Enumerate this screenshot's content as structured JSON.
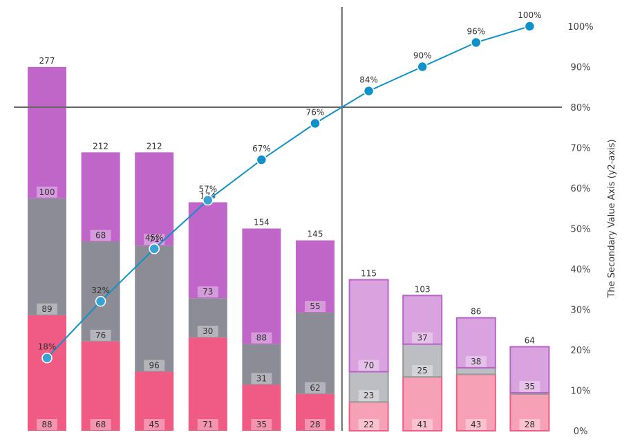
{
  "chart_data": {
    "type": "bar",
    "subtype": "stacked-bar-with-cumulative-line (pareto)",
    "categories": [
      "",
      "",
      "",
      "",
      "",
      "",
      "",
      "",
      "",
      ""
    ],
    "series": [
      {
        "values": [
          88,
          68,
          45,
          71,
          35,
          28,
          22,
          41,
          43,
          28
        ]
      },
      {
        "values": [
          89,
          76,
          96,
          30,
          31,
          62,
          23,
          25,
          5,
          1
        ]
      },
      {
        "values": [
          100,
          68,
          71,
          73,
          88,
          55,
          70,
          37,
          38,
          35
        ]
      }
    ],
    "segment_labels": [
      [
        "88",
        "68",
        "45",
        "71",
        "35",
        "28",
        "22",
        "41",
        "43",
        "28"
      ],
      [
        "89",
        "76",
        "96",
        "30",
        "31",
        "62",
        "23",
        "25",
        "",
        ""
      ],
      [
        "100",
        "68",
        "71",
        "73",
        "88",
        "55",
        "70",
        "37",
        "38",
        "35"
      ]
    ],
    "totals": [
      277,
      212,
      212,
      174,
      154,
      145,
      115,
      103,
      86,
      64
    ],
    "total_labels": [
      "277",
      "212",
      "212",
      "174",
      "154",
      "145",
      "115",
      "103",
      "86",
      "64"
    ],
    "cumulative_line": {
      "values": [
        18,
        32,
        45,
        57,
        67,
        76,
        84,
        90,
        96,
        100
      ],
      "labels": [
        "18%",
        "32%",
        "45%",
        "57%",
        "67%",
        "76%",
        "84%",
        "90%",
        "96%",
        "100%"
      ]
    },
    "y_axis": {
      "ylim": [
        0,
        308
      ]
    },
    "y2_axis": {
      "label": "The Secondary Value Axis (y2-axis)",
      "ylim": [
        0,
        100
      ],
      "ticks": [
        0,
        10,
        20,
        30,
        40,
        50,
        60,
        70,
        80,
        90,
        100
      ],
      "tick_labels": [
        "0%",
        "10%",
        "20%",
        "30%",
        "40%",
        "50%",
        "60%",
        "70%",
        "80%",
        "90%",
        "100%"
      ]
    },
    "threshold": {
      "y2_value": 80,
      "split_after_index": 5
    },
    "grid": false,
    "colors": {
      "series_primary": [
        "#f05b84",
        "#8c8c96",
        "#bf66c8"
      ],
      "series_secondary": [
        "#f7a1b6",
        "#bdbdc4",
        "#d8a3de"
      ],
      "outline_secondary": [
        "#ee5d86",
        "#999999",
        "#b963c6"
      ],
      "line": "#1191c9",
      "marker_fill_before": "#1191c9",
      "marker_fill_faded": "#3aa3d3",
      "threshold_line": "#666666"
    }
  }
}
